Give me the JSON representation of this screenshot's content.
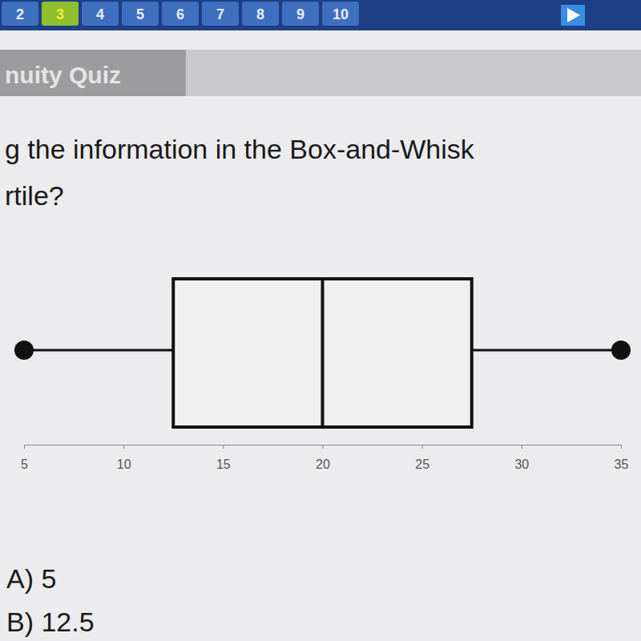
{
  "nav": {
    "tabs": [
      "2",
      "3",
      "4",
      "5",
      "6",
      "7",
      "8",
      "9",
      "10"
    ]
  },
  "header": {
    "title": "nuity Quiz"
  },
  "question": {
    "lines": [
      "g the information in the Box-and-Whisk",
      "rtile?"
    ],
    "options": [
      "A) 5",
      "B) 12.5"
    ]
  },
  "chart_data": {
    "type": "box",
    "min": 5,
    "q1": 12.5,
    "median": 20,
    "q3": 27.5,
    "max": 35,
    "xlim": [
      5,
      35
    ],
    "xticks": [
      5,
      10,
      15,
      20,
      25,
      30,
      35
    ]
  }
}
